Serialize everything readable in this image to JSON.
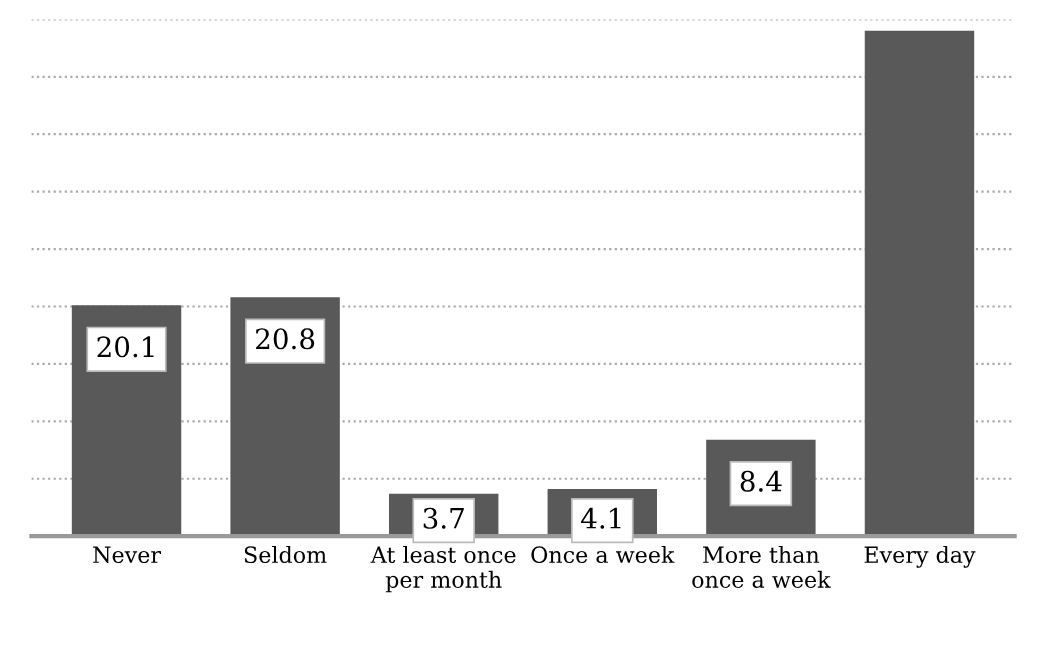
{
  "chart_data": {
    "type": "bar",
    "categories": [
      "Never",
      "Seldom",
      "At least once\nper month",
      "Once a week",
      "More than\nonce a week",
      "Every day"
    ],
    "values": [
      20.1,
      20.8,
      3.7,
      4.1,
      8.4,
      44
    ],
    "value_labels": [
      "20.1",
      "20.8",
      "3.7",
      "4.1",
      "8.4",
      null
    ],
    "color": "#595959",
    "ylim": [
      0,
      45
    ],
    "yticks": [
      {
        "value": 0,
        "label": null
      },
      {
        "value": 5,
        "label": null
      },
      {
        "value": 10,
        "label": null
      },
      {
        "value": 15,
        "label": null
      },
      {
        "value": 20,
        "label": null
      },
      {
        "value": 25,
        "label": null
      },
      {
        "value": 30,
        "label": null
      },
      {
        "value": 35,
        "label": null
      },
      {
        "value": 40,
        "label": null
      },
      {
        "value": 45,
        "label": null
      }
    ],
    "grid": "y",
    "tick_labels": "x"
  }
}
